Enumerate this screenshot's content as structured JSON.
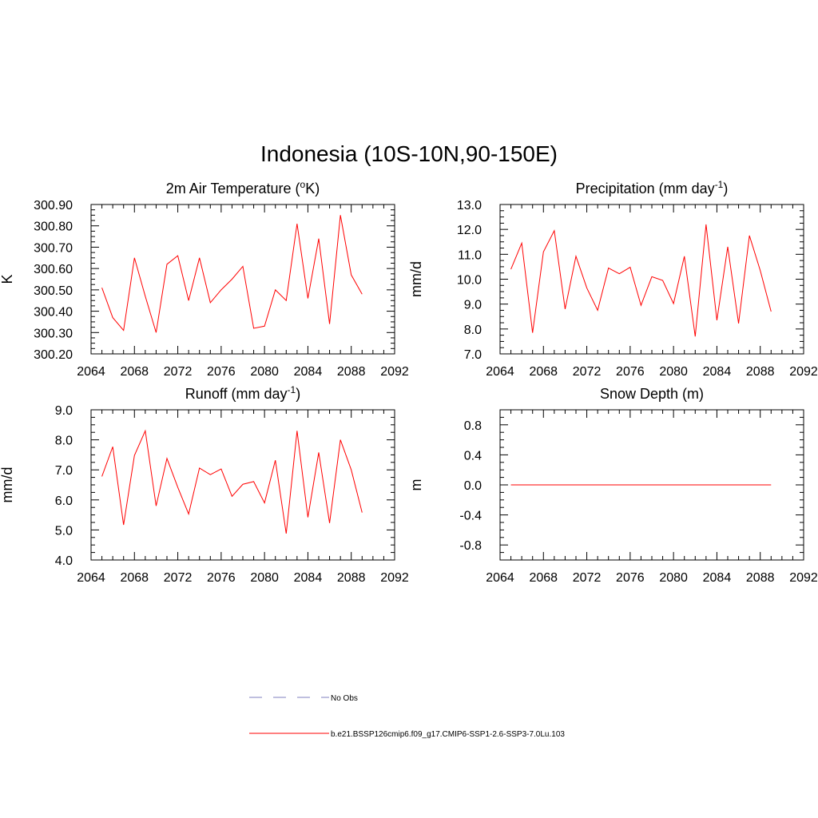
{
  "title": "Indonesia (10S-10N,90-150E)",
  "colors": {
    "series": "#ff0000",
    "no_obs": "#9999cc",
    "frame": "#000000"
  },
  "legend": [
    {
      "label": "No Obs",
      "style": "dashed",
      "color": "#9999cc"
    },
    {
      "label": "b.e21.BSSP126cmip6.f09_g17.CMIP6-SSP1-2.6-SSP3-7.0Lu.103",
      "style": "solid",
      "color": "#ff0000"
    }
  ],
  "chart_data": [
    {
      "type": "line",
      "title": "2m Air Temperature (",
      "title_sup": "o",
      "title_after": "K)",
      "ylabel": "K",
      "xlim": [
        2064,
        2092
      ],
      "xticks": [
        2064,
        2068,
        2072,
        2076,
        2080,
        2084,
        2088,
        2092
      ],
      "ylim": [
        300.2,
        300.9
      ],
      "yticks": [
        "300.20",
        "300.30",
        "300.40",
        "300.50",
        "300.60",
        "300.70",
        "300.80",
        "300.90"
      ],
      "series": [
        {
          "name": "b.e21.BSSP126cmip6.f09_g17.CMIP6-SSP1-2.6-SSP3-7.0Lu.103",
          "x": [
            2065,
            2066,
            2067,
            2068,
            2069,
            2070,
            2071,
            2072,
            2073,
            2074,
            2075,
            2076,
            2077,
            2078,
            2079,
            2080,
            2081,
            2082,
            2083,
            2084,
            2085,
            2086,
            2087,
            2088,
            2089
          ],
          "values": [
            300.51,
            300.37,
            300.31,
            300.65,
            300.47,
            300.3,
            300.62,
            300.66,
            300.45,
            300.65,
            300.44,
            300.5,
            300.55,
            300.61,
            300.32,
            300.33,
            300.5,
            300.45,
            300.81,
            300.46,
            300.74,
            300.34,
            300.85,
            300.57,
            300.48
          ]
        }
      ]
    },
    {
      "type": "line",
      "title": "Precipitation (mm day",
      "title_sup": "-1",
      "title_after": ")",
      "ylabel": "mm/d",
      "xlim": [
        2064,
        2092
      ],
      "xticks": [
        2064,
        2068,
        2072,
        2076,
        2080,
        2084,
        2088,
        2092
      ],
      "ylim": [
        7.0,
        13.0
      ],
      "yticks": [
        "7.0",
        "8.0",
        "9.0",
        "10.0",
        "11.0",
        "12.0",
        "13.0"
      ],
      "series": [
        {
          "name": "b.e21.BSSP126cmip6.f09_g17.CMIP6-SSP1-2.6-SSP3-7.0Lu.103",
          "x": [
            2065,
            2066,
            2067,
            2068,
            2069,
            2070,
            2071,
            2072,
            2073,
            2074,
            2075,
            2076,
            2077,
            2078,
            2079,
            2080,
            2081,
            2082,
            2083,
            2084,
            2085,
            2086,
            2087,
            2088,
            2089
          ],
          "values": [
            10.4,
            11.45,
            7.85,
            11.1,
            11.95,
            8.8,
            10.92,
            9.65,
            8.75,
            10.45,
            10.22,
            10.48,
            8.95,
            10.1,
            9.95,
            9.02,
            10.92,
            7.7,
            12.2,
            8.35,
            11.3,
            8.22,
            11.75,
            10.35,
            8.7
          ]
        }
      ]
    },
    {
      "type": "line",
      "title": "Runoff (mm day",
      "title_sup": "-1",
      "title_after": ")",
      "ylabel": "mm/d",
      "xlim": [
        2064,
        2092
      ],
      "xticks": [
        2064,
        2068,
        2072,
        2076,
        2080,
        2084,
        2088,
        2092
      ],
      "ylim": [
        4.0,
        9.0
      ],
      "yticks": [
        "4.0",
        "5.0",
        "6.0",
        "7.0",
        "8.0",
        "9.0"
      ],
      "series": [
        {
          "name": "b.e21.BSSP126cmip6.f09_g17.CMIP6-SSP1-2.6-SSP3-7.0Lu.103",
          "x": [
            2065,
            2066,
            2067,
            2068,
            2069,
            2070,
            2071,
            2072,
            2073,
            2074,
            2075,
            2076,
            2077,
            2078,
            2079,
            2080,
            2081,
            2082,
            2083,
            2084,
            2085,
            2086,
            2087,
            2088,
            2089
          ],
          "values": [
            6.78,
            7.77,
            5.17,
            7.48,
            8.3,
            5.8,
            7.38,
            6.42,
            5.53,
            7.06,
            6.84,
            7.03,
            6.12,
            6.52,
            6.61,
            5.9,
            7.32,
            4.88,
            8.3,
            5.42,
            7.58,
            5.23,
            8.0,
            7.0,
            5.58
          ]
        }
      ]
    },
    {
      "type": "line",
      "title": "Snow Depth (m)",
      "title_sup": "",
      "title_after": "",
      "ylabel": "m",
      "xlim": [
        2064,
        2092
      ],
      "xticks": [
        2064,
        2068,
        2072,
        2076,
        2080,
        2084,
        2088,
        2092
      ],
      "ylim": [
        -1.0,
        1.0
      ],
      "yticks": [
        "-0.8",
        "-0.4",
        "0.0",
        "0.4",
        "0.8"
      ],
      "series": [
        {
          "name": "b.e21.BSSP126cmip6.f09_g17.CMIP6-SSP1-2.6-SSP3-7.0Lu.103",
          "x": [
            2065,
            2066,
            2067,
            2068,
            2069,
            2070,
            2071,
            2072,
            2073,
            2074,
            2075,
            2076,
            2077,
            2078,
            2079,
            2080,
            2081,
            2082,
            2083,
            2084,
            2085,
            2086,
            2087,
            2088,
            2089
          ],
          "values": [
            0,
            0,
            0,
            0,
            0,
            0,
            0,
            0,
            0,
            0,
            0,
            0,
            0,
            0,
            0,
            0,
            0,
            0,
            0,
            0,
            0,
            0,
            0,
            0,
            0
          ]
        }
      ]
    }
  ]
}
